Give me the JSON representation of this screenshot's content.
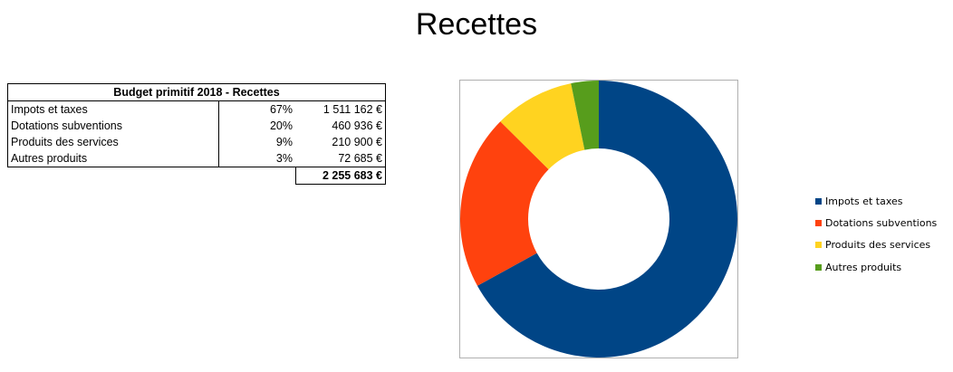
{
  "chart_data": {
    "type": "pie",
    "title": "Recettes",
    "variant": "donut",
    "categories": [
      "Impots et taxes",
      "Dotations subventions",
      "Produits des services",
      "Autres produits"
    ],
    "values": [
      1511162,
      460936,
      210900,
      72685
    ],
    "colors": [
      "#004586",
      "#ff420e",
      "#ffd320",
      "#579d1c"
    ],
    "legend": "right"
  },
  "table": {
    "header": "Budget primitif 2018 - Recettes",
    "rows": [
      {
        "label": "Impots et taxes",
        "pct": "67%",
        "amount": "1 511 162 €"
      },
      {
        "label": "Dotations subventions",
        "pct": "20%",
        "amount": "460 936 €"
      },
      {
        "label": "Produits des services",
        "pct": "9%",
        "amount": "210 900 €"
      },
      {
        "label": "Autres produits",
        "pct": "3%",
        "amount": "72 685 €"
      }
    ],
    "total": "2 255 683 €"
  }
}
